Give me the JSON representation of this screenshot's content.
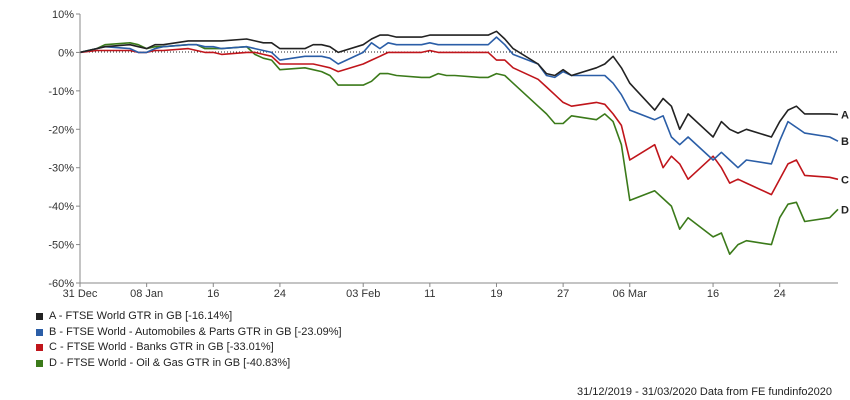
{
  "chart_data": {
    "type": "line",
    "ylim": [
      -60,
      10
    ],
    "yticks": [
      10,
      0,
      -10,
      -20,
      -30,
      -40,
      -50,
      -60
    ],
    "ytick_labels": [
      "10%",
      "0%",
      "-10%",
      "-20%",
      "-30%",
      "-40%",
      "-50%",
      "-60%"
    ],
    "xlim": [
      "2019-12-31",
      "2020-03-31"
    ],
    "xticks": [
      "2019-12-31",
      "2020-01-08",
      "2020-01-16",
      "2020-01-24",
      "2020-02-03",
      "2020-02-11",
      "2020-02-19",
      "2020-02-27",
      "2020-03-06",
      "2020-03-16",
      "2020-03-24"
    ],
    "xtick_labels": [
      "31 Dec",
      "08 Jan",
      "16",
      "24",
      "03 Feb",
      "11",
      "19",
      "27",
      "06 Mar",
      "16",
      "24"
    ],
    "zero_line": "dotted",
    "grid": false,
    "legend_position": "bottom-left",
    "x": [
      "2019-12-31",
      "2020-01-02",
      "2020-01-03",
      "2020-01-06",
      "2020-01-07",
      "2020-01-08",
      "2020-01-09",
      "2020-01-10",
      "2020-01-13",
      "2020-01-14",
      "2020-01-15",
      "2020-01-16",
      "2020-01-17",
      "2020-01-20",
      "2020-01-21",
      "2020-01-22",
      "2020-01-23",
      "2020-01-24",
      "2020-01-27",
      "2020-01-28",
      "2020-01-29",
      "2020-01-30",
      "2020-01-31",
      "2020-02-03",
      "2020-02-04",
      "2020-02-05",
      "2020-02-06",
      "2020-02-07",
      "2020-02-10",
      "2020-02-11",
      "2020-02-12",
      "2020-02-13",
      "2020-02-14",
      "2020-02-17",
      "2020-02-18",
      "2020-02-19",
      "2020-02-20",
      "2020-02-21",
      "2020-02-24",
      "2020-02-25",
      "2020-02-26",
      "2020-02-27",
      "2020-02-28",
      "2020-03-02",
      "2020-03-03",
      "2020-03-04",
      "2020-03-05",
      "2020-03-06",
      "2020-03-09",
      "2020-03-10",
      "2020-03-11",
      "2020-03-12",
      "2020-03-13",
      "2020-03-16",
      "2020-03-17",
      "2020-03-18",
      "2020-03-19",
      "2020-03-20",
      "2020-03-23",
      "2020-03-24",
      "2020-03-25",
      "2020-03-26",
      "2020-03-27",
      "2020-03-30",
      "2020-03-31"
    ],
    "series": [
      {
        "name": "A",
        "color": "#222222",
        "values": [
          0,
          1,
          1.5,
          2,
          1.5,
          1,
          2,
          2,
          3,
          3,
          3,
          3,
          3,
          3.5,
          3,
          2.5,
          2.5,
          1,
          1,
          2,
          2,
          1.5,
          0,
          2,
          3.5,
          4.5,
          4.5,
          4,
          4,
          4.5,
          4.5,
          4.5,
          4.5,
          4.5,
          4.5,
          5.5,
          3.5,
          1,
          -3,
          -5.5,
          -6,
          -4.5,
          -6,
          -4,
          -3,
          -1,
          -4,
          -8,
          -15,
          -12,
          -14,
          -20,
          -16,
          -22,
          -18,
          -20,
          -21,
          -20,
          -22,
          -18,
          -15,
          -14,
          -16,
          -16,
          -16.14
        ]
      },
      {
        "name": "B",
        "color": "#2b5ea7",
        "values": [
          0,
          1,
          1.5,
          1,
          0,
          0,
          1,
          1.5,
          2,
          2,
          1.5,
          1.5,
          1,
          1.5,
          1,
          0.5,
          0,
          -2,
          -1,
          -1,
          -1,
          -1.5,
          -3,
          0,
          2.5,
          1,
          2.5,
          2,
          2,
          2.5,
          2,
          2,
          2,
          2,
          2,
          4,
          2,
          -0.5,
          -3,
          -6,
          -6.5,
          -5,
          -6,
          -6,
          -6,
          -8,
          -11,
          -15,
          -17.5,
          -16.5,
          -22,
          -24,
          -22,
          -28,
          -26,
          -28,
          -30,
          -28,
          -29,
          -23,
          -18,
          -19.5,
          -21,
          -22,
          -23.09
        ]
      },
      {
        "name": "C",
        "color": "#c0151b",
        "values": [
          0,
          0.5,
          0.5,
          0.5,
          0,
          0,
          0.5,
          0.5,
          1,
          0.5,
          0,
          0,
          -0.5,
          0,
          0,
          -0.5,
          -1,
          -3,
          -3,
          -3,
          -3.5,
          -4,
          -5,
          -3,
          -2,
          -1,
          0,
          0,
          0,
          0.5,
          0,
          0,
          0,
          0,
          0,
          -2,
          -2,
          -4,
          -7,
          -9,
          -11,
          -13,
          -14,
          -13,
          -13.5,
          -16,
          -19,
          -28,
          -24,
          -30,
          -27,
          -29,
          -33,
          -27,
          -30,
          -34,
          -33,
          -34,
          -37,
          -33,
          -29,
          -28,
          -32,
          -32.5,
          -33.01
        ]
      },
      {
        "name": "D",
        "color": "#3b7a1a",
        "values": [
          0,
          1,
          2,
          2.5,
          2,
          1,
          1.5,
          1.5,
          2,
          2,
          1,
          1,
          1,
          1.5,
          -0.5,
          -1.5,
          -2,
          -4.5,
          -4,
          -4.5,
          -5,
          -6,
          -8.5,
          -8.5,
          -7.5,
          -5.5,
          -5.5,
          -6,
          -6.5,
          -6.5,
          -5.5,
          -6,
          -6,
          -6.5,
          -6.5,
          -5.5,
          -6,
          -8,
          -14,
          -16,
          -18.5,
          -18.5,
          -16.5,
          -17.5,
          -16,
          -18,
          -24,
          -38.5,
          -36,
          -38,
          -40,
          -46,
          -43,
          -48,
          -47,
          -52.5,
          -50,
          -49,
          -50,
          -43,
          -39.5,
          -39,
          -44,
          -43,
          -40.83
        ]
      }
    ]
  },
  "legend": [
    {
      "label": "A - FTSE World GTR in GB [-16.14%]",
      "color": "#222222"
    },
    {
      "label": "B - FTSE World - Automobiles & Parts GTR in GB [-23.09%]",
      "color": "#2b5ea7"
    },
    {
      "label": "C - FTSE World - Banks GTR in GB [-33.01%]",
      "color": "#c0151b"
    },
    {
      "label": "D - FTSE World - Oil & Gas GTR in GB [-40.83%]",
      "color": "#3b7a1a"
    }
  ],
  "footer": {
    "text": "31/12/2019 - 31/03/2020 Data from FE fundinfo2020"
  }
}
